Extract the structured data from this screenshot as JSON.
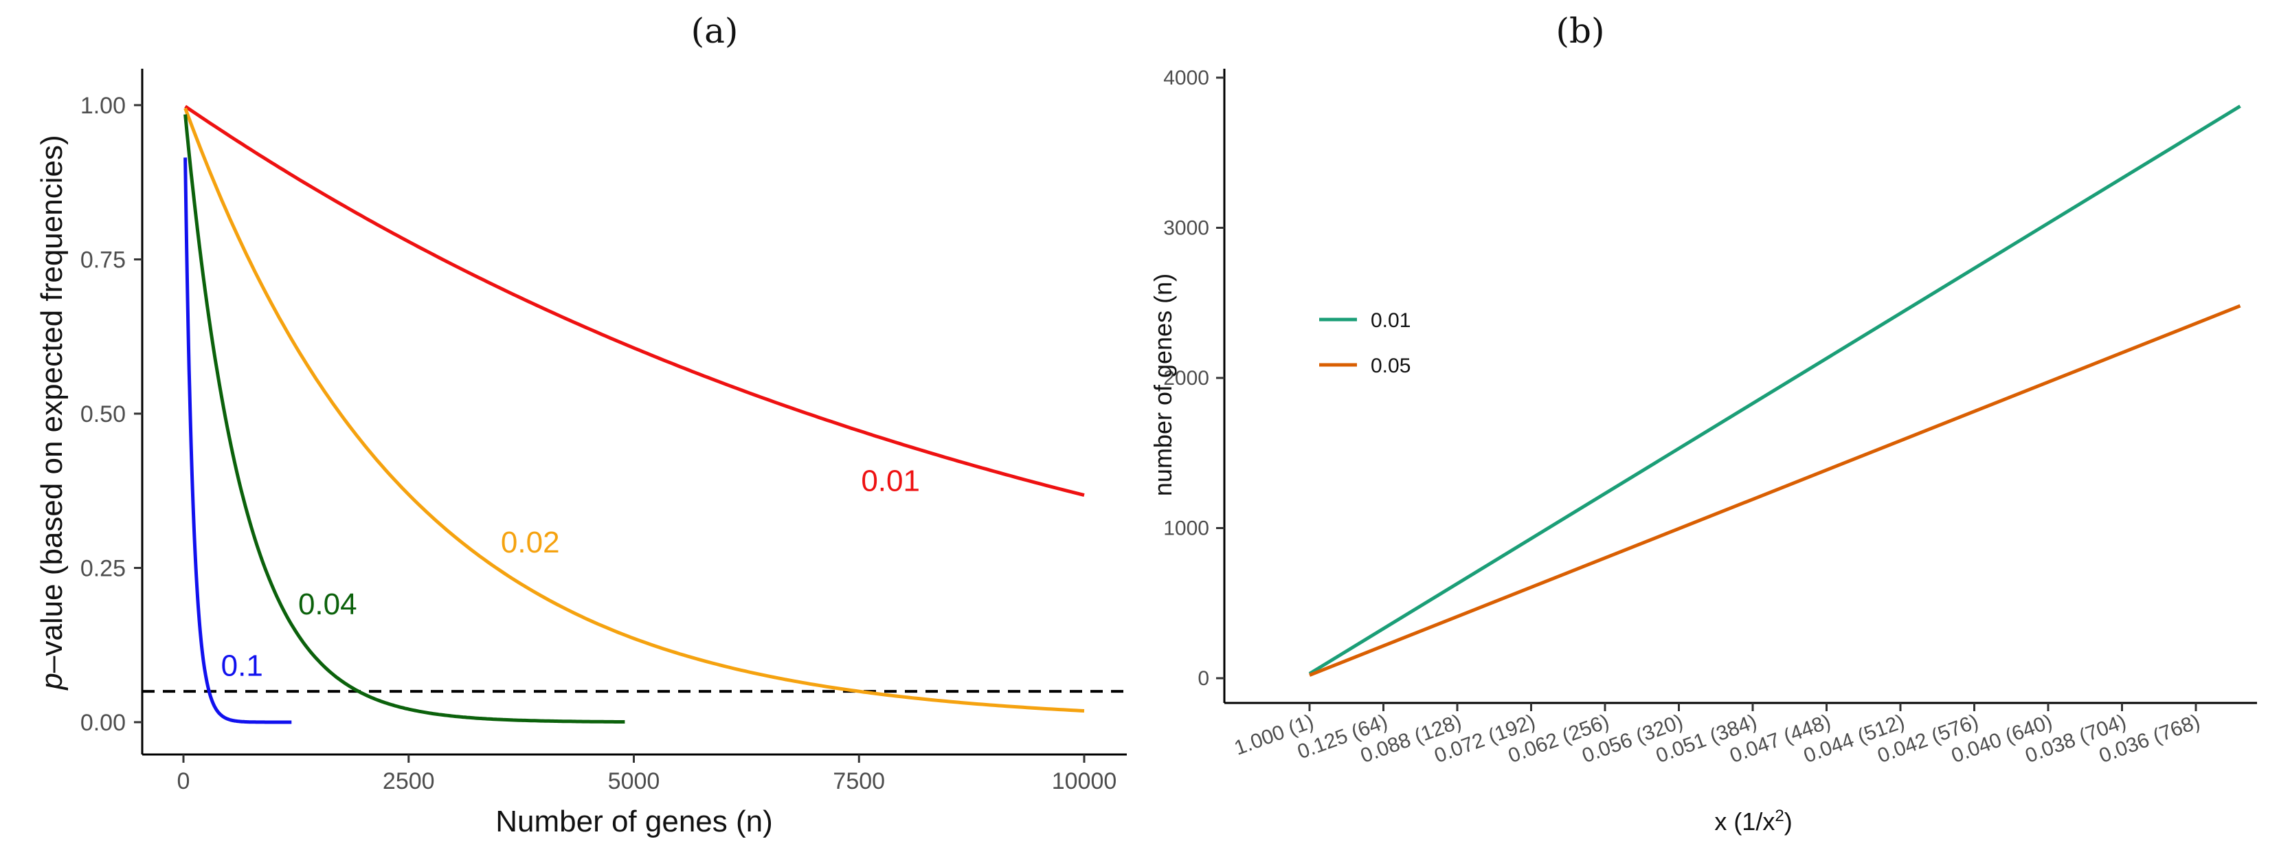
{
  "chart_data": [
    {
      "panel": "(a)",
      "type": "line",
      "xlabel": "Number of genes (n)",
      "ylabel_italic": "p",
      "ylabel_rest": "–value (based on expected frequencies)",
      "xlim": [
        0,
        10000
      ],
      "ylim": [
        0,
        1
      ],
      "xticks": [
        0,
        2500,
        5000,
        7500,
        10000
      ],
      "xtick_labels": [
        "0",
        "2500",
        "5000",
        "7500",
        "10000"
      ],
      "yticks": [
        0,
        0.25,
        0.5,
        0.75,
        1
      ],
      "ytick_labels": [
        "0.00",
        "0.25",
        "0.50",
        "0.75",
        "1.00"
      ],
      "hline": {
        "y": 0.05,
        "style": "dashed",
        "color": "#000000"
      },
      "series": [
        {
          "name": "0.01",
          "color": "#ee1111",
          "x_start": 20,
          "x_end": 10000,
          "p0": 0.998,
          "rate": 0.0001,
          "label": "0.01",
          "label_x": 7850,
          "label_y": 0.375
        },
        {
          "name": "0.02",
          "color": "#f5a20f",
          "x_start": 20,
          "x_end": 10000,
          "p0": 0.995,
          "rate": 0.0004,
          "label": "0.02",
          "label_x": 3850,
          "label_y": 0.275
        },
        {
          "name": "0.04",
          "color": "#0b610b",
          "x_start": 20,
          "x_end": 4900,
          "p0": 0.985,
          "rate": 0.00155,
          "label": "0.04",
          "label_x": 1600,
          "label_y": 0.175
        },
        {
          "name": "0.1",
          "color": "#1111ee",
          "x_start": 20,
          "x_end": 1200,
          "p0": 0.915,
          "rate": 0.011,
          "label": "0.1",
          "label_x": 650,
          "label_y": 0.075
        }
      ]
    },
    {
      "panel": "(b)",
      "type": "line",
      "xlabel_main": "x (1/x",
      "xlabel_sup": "2",
      "xlabel_end": ")",
      "ylabel": "number of genes (n)",
      "ylim": [
        0,
        4000
      ],
      "yticks": [
        0,
        1000,
        2000,
        3000,
        4000
      ],
      "ytick_labels": [
        "0",
        "1000",
        "2000",
        "3000",
        "4000"
      ],
      "xtick_labels": [
        "1.000 (1)",
        "0.125 (64)",
        "0.088 (128)",
        "0.072 (192)",
        "0.062 (256)",
        "0.056 (320)",
        "0.051 (384)",
        "0.047 (448)",
        "0.044 (512)",
        "0.042 (576)",
        "0.040 (640)",
        "0.038 (704)",
        "0.036 (768)"
      ],
      "x_index_range": [
        0,
        12.6
      ],
      "series": [
        {
          "name": "0.01",
          "color": "#1b9e77",
          "x": [
            0,
            12.6
          ],
          "y": [
            30,
            3810
          ]
        },
        {
          "name": "0.05",
          "color": "#d95f02",
          "x": [
            0,
            12.6
          ],
          "y": [
            20,
            2480
          ]
        }
      ],
      "legend": {
        "position": "upper-left",
        "entries": [
          "0.01",
          "0.05"
        ]
      }
    }
  ]
}
